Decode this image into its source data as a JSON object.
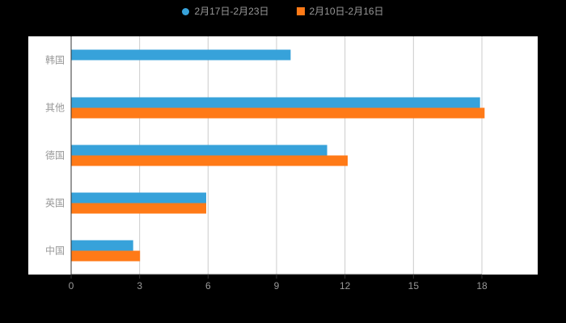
{
  "page": {
    "background": "#000000",
    "plot_background": "#ffffff"
  },
  "legend": {
    "items": [
      {
        "label": "2月17日-2月23日",
        "color": "#37A2DA",
        "marker": "circle"
      },
      {
        "label": "2月10日-2月16日",
        "color": "#FF7A17",
        "marker": "square"
      }
    ]
  },
  "chart_data": {
    "type": "bar",
    "orientation": "horizontal",
    "title": "",
    "xlabel": "",
    "ylabel": "",
    "categories": [
      "韩国",
      "其他",
      "德国",
      "英国",
      "中国"
    ],
    "series": [
      {
        "name": "2月17日-2月23日",
        "color": "#37A2DA",
        "values": [
          9.6,
          17.9,
          11.2,
          5.9,
          2.7
        ]
      },
      {
        "name": "2月10日-2月16日",
        "color": "#FF7A17",
        "values": [
          0,
          18.1,
          12.1,
          5.9,
          3.0
        ]
      }
    ],
    "xlim": [
      0,
      18
    ],
    "xticks": [
      0,
      3,
      6,
      9,
      12,
      15,
      18
    ],
    "grid": true,
    "legend_position": "top",
    "axis_color": "#333333",
    "grid_color": "#cccccc",
    "label_color": "#999999"
  }
}
